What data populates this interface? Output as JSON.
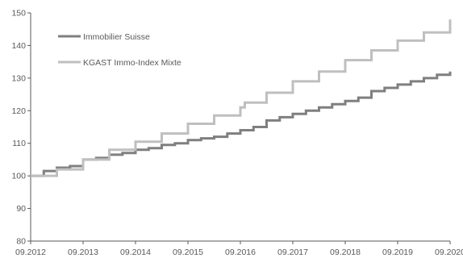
{
  "chart_data": {
    "type": "line",
    "title": "",
    "xlabel": "",
    "ylabel": "",
    "x_tick_labels": [
      "09.2012",
      "09.2013",
      "09.2014",
      "09.2015",
      "09.2016",
      "09.2017",
      "09.2018",
      "09.2019",
      "09.2020"
    ],
    "y_ticks": [
      80,
      90,
      100,
      110,
      120,
      130,
      140,
      150
    ],
    "ylim": [
      80,
      150
    ],
    "grid": false,
    "legend_position": "top-left",
    "series": [
      {
        "name": "Immobilier Suisse",
        "color": "#7f7f7f",
        "points": [
          [
            "09.2012",
            100.0
          ],
          [
            "12.2012",
            101.5
          ],
          [
            "03.2013",
            102.5
          ],
          [
            "06.2013",
            103.0
          ],
          [
            "09.2013",
            105.0
          ],
          [
            "12.2013",
            105.5
          ],
          [
            "03.2014",
            106.5
          ],
          [
            "06.2014",
            107.0
          ],
          [
            "09.2014",
            108.0
          ],
          [
            "12.2014",
            108.5
          ],
          [
            "03.2015",
            109.5
          ],
          [
            "06.2015",
            110.0
          ],
          [
            "09.2015",
            111.0
          ],
          [
            "12.2015",
            111.5
          ],
          [
            "03.2016",
            112.0
          ],
          [
            "06.2016",
            113.0
          ],
          [
            "09.2016",
            114.0
          ],
          [
            "12.2016",
            115.0
          ],
          [
            "03.2017",
            117.0
          ],
          [
            "06.2017",
            118.0
          ],
          [
            "09.2017",
            119.0
          ],
          [
            "12.2017",
            120.0
          ],
          [
            "03.2018",
            121.0
          ],
          [
            "06.2018",
            122.0
          ],
          [
            "09.2018",
            123.0
          ],
          [
            "12.2018",
            124.0
          ],
          [
            "03.2019",
            126.0
          ],
          [
            "06.2019",
            127.0
          ],
          [
            "09.2019",
            128.0
          ],
          [
            "12.2019",
            129.0
          ],
          [
            "03.2020",
            130.0
          ],
          [
            "06.2020",
            131.0
          ],
          [
            "09.2020",
            132.0
          ]
        ]
      },
      {
        "name": "KGAST Immo-Index Mixte",
        "color": "#bfbfbf",
        "points": [
          [
            "09.2012",
            100.0
          ],
          [
            "03.2013",
            102.0
          ],
          [
            "09.2013",
            105.0
          ],
          [
            "03.2014",
            108.0
          ],
          [
            "09.2014",
            110.5
          ],
          [
            "03.2015",
            113.0
          ],
          [
            "09.2015",
            116.0
          ],
          [
            "03.2016",
            118.5
          ],
          [
            "09.2016",
            121.0
          ],
          [
            "10.2016",
            122.5
          ],
          [
            "03.2017",
            125.5
          ],
          [
            "09.2017",
            129.0
          ],
          [
            "03.2018",
            132.0
          ],
          [
            "09.2018",
            135.5
          ],
          [
            "03.2019",
            138.5
          ],
          [
            "09.2019",
            141.5
          ],
          [
            "03.2020",
            144.0
          ],
          [
            "09.2020",
            148.0
          ]
        ]
      }
    ]
  }
}
